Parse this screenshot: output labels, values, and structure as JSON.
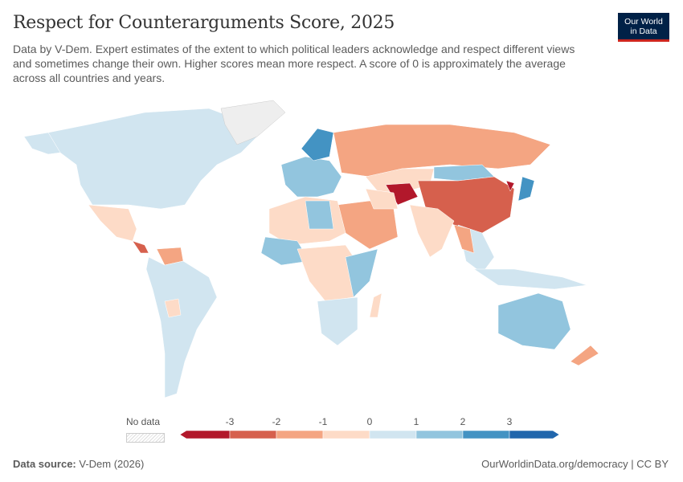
{
  "header": {
    "title": "Respect for Counterarguments Score, 2025",
    "subtitle": "Data by V-Dem. Expert estimates of the extent to which political leaders acknowledge and respect different views and sometimes change their own. Higher scores mean more respect. A score of 0 is approximately the average across all countries and years.",
    "logo_line1": "Our World",
    "logo_line2": "in Data"
  },
  "legend": {
    "no_data_label": "No data",
    "ticks": [
      "-3",
      "-2",
      "-1",
      "0",
      "1",
      "2",
      "3"
    ],
    "bins": [
      "#b2182b",
      "#d6604d",
      "#f4a582",
      "#fddbc7",
      "#d1e5f0",
      "#92c5de",
      "#4393c3",
      "#2166ac"
    ],
    "no_data_color": "#e0e0e0"
  },
  "footer": {
    "source_label": "Data source:",
    "source": "V-Dem (2026)",
    "url": "OurWorldinData.org/democracy | CC BY"
  }
}
